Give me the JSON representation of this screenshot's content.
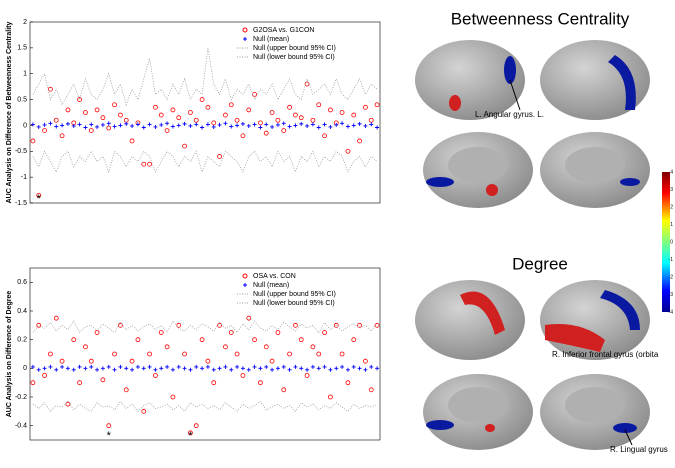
{
  "chart_data": [
    {
      "type": "scatter",
      "ylabel": "AUC Analysis on Difference of Betweenness Centrality",
      "ylim": [
        -1.5,
        2
      ],
      "yticks": [
        -1.5,
        -1,
        -0.5,
        0,
        0.5,
        1,
        1.5,
        2
      ],
      "annotations": [
        {
          "text": "*",
          "at": 1
        }
      ],
      "series": [
        {
          "name": "G2OSA vs. G1CON",
          "color": "#ff0000",
          "marker": "circle",
          "values": [
            -0.3,
            -1.35,
            -0.1,
            0.7,
            0.1,
            -0.2,
            0.3,
            0.05,
            0.5,
            0.25,
            -0.1,
            0.3,
            0.15,
            -0.05,
            0.4,
            0.2,
            0.1,
            -0.3,
            0.05,
            -0.75,
            -0.75,
            0.35,
            0.2,
            -0.1,
            0.3,
            0.15,
            -0.4,
            0.25,
            0.1,
            0.5,
            0.35,
            0.05,
            -0.6,
            0.2,
            0.4,
            0.1,
            -0.2,
            0.3,
            0.6,
            0.05,
            -0.15,
            0.25,
            0.1,
            -0.1,
            0.35,
            0.2,
            0.15,
            0.8,
            0.1,
            0.4,
            -0.2,
            0.3,
            0.05,
            0.25,
            -0.5,
            0.2,
            -0.3,
            0.35,
            0.1,
            0.4
          ]
        },
        {
          "name": "Null (mean)",
          "color": "#0000ff",
          "marker": "plus",
          "values": [
            0.02,
            -0.03,
            0.01,
            0.04,
            -0.02,
            0,
            0.03,
            -0.01,
            0.02,
            -0.04,
            0.02,
            -0.03,
            0.01,
            0.04,
            -0.02,
            0,
            0.03,
            -0.01,
            0.02,
            -0.04,
            0.02,
            -0.03,
            0.01,
            0.04,
            -0.02,
            0,
            0.03,
            -0.01,
            0.02,
            -0.04,
            0.02,
            -0.03,
            0.01,
            0.04,
            -0.02,
            0,
            0.03,
            -0.01,
            0.02,
            -0.04,
            0.02,
            -0.03,
            0.01,
            0.04,
            -0.02,
            0,
            0.03,
            -0.01,
            0.02,
            -0.04,
            0.02,
            -0.03,
            0.01,
            0.04,
            -0.02,
            0,
            0.03,
            -0.01,
            0.02,
            -0.04
          ]
        },
        {
          "name": "Null (upper bound 95% CI)",
          "color": "#999999",
          "marker": "dotted",
          "values": [
            0.6,
            0.8,
            1.0,
            0.5,
            0.7,
            0.4,
            0.6,
            0.8,
            0.5,
            0.9,
            0.6,
            0.5,
            0.7,
            1.0,
            0.6,
            0.8,
            0.4,
            0.7,
            0.5,
            0.9,
            1.3,
            0.6,
            0.7,
            0.5,
            0.8,
            0.6,
            0.9,
            0.5,
            0.7,
            0.6,
            1.5,
            0.8,
            0.6,
            0.9,
            0.5,
            0.7,
            0.6,
            0.8,
            0.5,
            0.7,
            0.6,
            0.8,
            0.5,
            0.7,
            0.9,
            0.6,
            0.5,
            0.9,
            0.6,
            0.7,
            0.8,
            0.6,
            0.9,
            0.6,
            0.5,
            0.7,
            0.9,
            0.6,
            0.8,
            0.7
          ]
        },
        {
          "name": "Null (lower bound 95% CI)",
          "color": "#999999",
          "marker": "dotted",
          "values": [
            -0.6,
            -0.8,
            -0.5,
            -0.7,
            -0.9,
            -0.6,
            -0.5,
            -0.8,
            -0.6,
            -0.7,
            -0.5,
            -0.7,
            -0.6,
            -0.9,
            -0.5,
            -0.6,
            -0.8,
            -0.6,
            -0.7,
            -0.5,
            -0.6,
            -0.9,
            -0.7,
            -0.5,
            -0.6,
            -0.8,
            -0.6,
            -0.7,
            -0.5,
            -0.9,
            -0.6,
            -0.7,
            -0.8,
            -0.5,
            -0.6,
            -0.7,
            -0.9,
            -0.6,
            -0.5,
            -0.7,
            -0.6,
            -0.8,
            -0.5,
            -0.7,
            -0.6,
            -0.9,
            -0.6,
            -0.7,
            -0.5,
            -0.8,
            -0.6,
            -0.7,
            -0.5,
            -0.6,
            -0.9,
            -0.7,
            -0.6,
            -0.8,
            -0.6,
            -0.7
          ]
        }
      ]
    },
    {
      "type": "scatter",
      "ylabel": "AUC Analysis on Difference of Degree",
      "ylim": [
        -0.5,
        0.7
      ],
      "yticks": [
        -0.4,
        -0.2,
        0,
        0.2,
        0.4,
        0.6
      ],
      "annotations": [
        {
          "text": "*",
          "at": 13
        },
        {
          "text": "*",
          "at": 27
        }
      ],
      "series": [
        {
          "name": "OSA vs. CON",
          "color": "#ff0000",
          "marker": "circle",
          "values": [
            -0.1,
            0.3,
            -0.05,
            0.1,
            0.35,
            0.05,
            -0.25,
            0.2,
            -0.1,
            0.15,
            0.05,
            0.25,
            -0.08,
            -0.4,
            0.1,
            0.3,
            -0.15,
            0.05,
            0.2,
            -0.3,
            0.1,
            -0.05,
            0.25,
            0.15,
            -0.2,
            0.3,
            0.1,
            -0.45,
            -0.4,
            0.2,
            0.05,
            -0.1,
            0.3,
            0.15,
            0.25,
            0.1,
            -0.05,
            0.35,
            0.2,
            -0.1,
            0.15,
            0.05,
            0.25,
            -0.15,
            0.1,
            0.3,
            0.2,
            -0.05,
            0.15,
            0.1,
            0.25,
            -0.2,
            0.3,
            0.1,
            -0.1,
            0.2,
            0.3,
            0.05,
            -0.15,
            0.3
          ]
        },
        {
          "name": "Null (mean)",
          "color": "#0000ff",
          "marker": "plus",
          "values": [
            0.01,
            -0.01,
            0,
            0.01,
            -0.01,
            0.01,
            0,
            -0.01,
            0.01,
            0,
            0.01,
            -0.01,
            0,
            0.01,
            -0.01,
            0.01,
            0,
            -0.01,
            0.01,
            0,
            0.01,
            -0.01,
            0,
            0.01,
            -0.01,
            0.01,
            0,
            -0.01,
            0.01,
            0,
            0.01,
            -0.01,
            0,
            0.01,
            -0.01,
            0.01,
            0,
            -0.01,
            0.01,
            0,
            0.01,
            -0.01,
            0,
            0.01,
            -0.01,
            0.01,
            0,
            -0.01,
            0.01,
            0,
            0.01,
            -0.01,
            0,
            0.01,
            -0.01,
            0.01,
            0,
            -0.01,
            0.01,
            0
          ]
        },
        {
          "name": "Null (upper bound 95% CI)",
          "color": "#999999",
          "marker": "dotted",
          "values": [
            0.25,
            0.3,
            0.28,
            0.32,
            0.26,
            0.3,
            0.27,
            0.33,
            0.25,
            0.29,
            0.3,
            0.26,
            0.31,
            0.28,
            0.25,
            0.32,
            0.27,
            0.3,
            0.26,
            0.29,
            0.31,
            0.27,
            0.3,
            0.25,
            0.33,
            0.28,
            0.26,
            0.3,
            0.27,
            0.31,
            0.29,
            0.26,
            0.32,
            0.28,
            0.3,
            0.25,
            0.31,
            0.27,
            0.33,
            0.28,
            0.26,
            0.3,
            0.27,
            0.32,
            0.29,
            0.26,
            0.31,
            0.28,
            0.3,
            0.25,
            0.32,
            0.27,
            0.3,
            0.26,
            0.29,
            0.31,
            0.28,
            0.3,
            0.26,
            0.32
          ]
        },
        {
          "name": "Null (lower bound 95% CI)",
          "color": "#999999",
          "marker": "dotted",
          "values": [
            -0.25,
            -0.28,
            -0.24,
            -0.3,
            -0.26,
            -0.27,
            -0.23,
            -0.29,
            -0.25,
            -0.28,
            -0.3,
            -0.24,
            -0.27,
            -0.26,
            -0.29,
            -0.23,
            -0.28,
            -0.25,
            -0.3,
            -0.26,
            -0.24,
            -0.28,
            -0.27,
            -0.25,
            -0.29,
            -0.26,
            -0.3,
            -0.24,
            -0.27,
            -0.25,
            -0.28,
            -0.26,
            -0.29,
            -0.24,
            -0.27,
            -0.3,
            -0.25,
            -0.28,
            -0.26,
            -0.23,
            -0.29,
            -0.27,
            -0.25,
            -0.28,
            -0.26,
            -0.3,
            -0.24,
            -0.27,
            -0.25,
            -0.29,
            -0.26,
            -0.28,
            -0.24,
            -0.27,
            -0.3,
            -0.25,
            -0.28,
            -0.26,
            -0.27,
            -0.25
          ]
        }
      ]
    }
  ],
  "brain": {
    "title_top": "Betweenness Centrality",
    "title_bottom": "Degree",
    "label_angular": "L. Angular gyrus. L.",
    "label_frontal": "R. Inferior frontal gyrus (orbita",
    "label_lingual": "R. Lingual gyrus",
    "colorbar_ticks": [
      4,
      3,
      2,
      1,
      0,
      -1,
      -2,
      -3,
      -4
    ]
  }
}
